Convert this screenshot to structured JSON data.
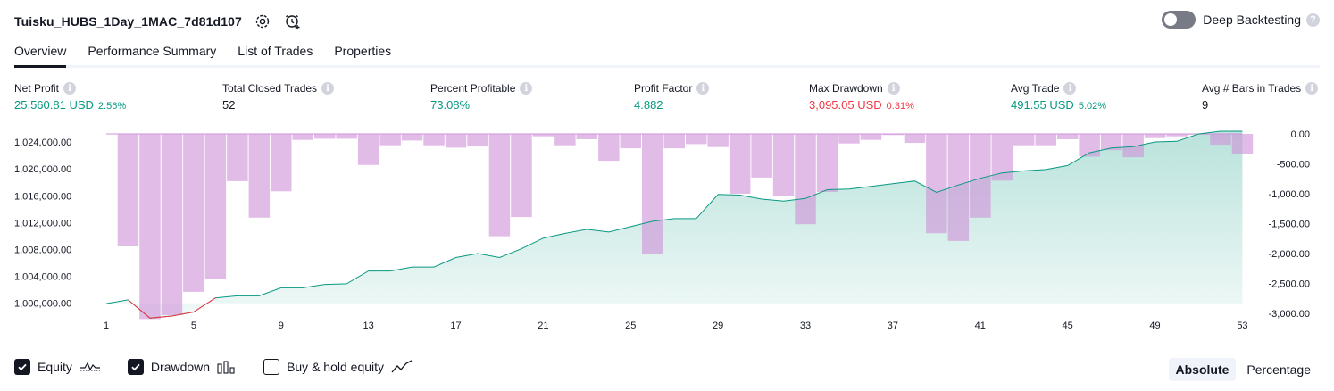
{
  "header": {
    "strategy_name": "Tuisku_HUBS_1Day_1MAC_7d81d107",
    "settings_icon": "gear-icon",
    "alert_icon": "add-alert-icon",
    "deep_backtesting_label": "Deep Backtesting",
    "deep_backtesting_on": false,
    "help_glyph": "?"
  },
  "tabs": [
    {
      "label": "Overview",
      "active": true
    },
    {
      "label": "Performance Summary",
      "active": false
    },
    {
      "label": "List of Trades",
      "active": false
    },
    {
      "label": "Properties",
      "active": false
    }
  ],
  "metrics": [
    {
      "label": "Net Profit",
      "value": "25,560.81 USD",
      "pct": "2.56%",
      "tone": "pos"
    },
    {
      "label": "Total Closed Trades",
      "value": "52",
      "pct": "",
      "tone": "neu"
    },
    {
      "label": "Percent Profitable",
      "value": "73.08%",
      "pct": "",
      "tone": "pos"
    },
    {
      "label": "Profit Factor",
      "value": "4.882",
      "pct": "",
      "tone": "pos"
    },
    {
      "label": "Max Drawdown",
      "value": "3,095.05 USD",
      "pct": "0.31%",
      "tone": "neg"
    },
    {
      "label": "Avg Trade",
      "value": "491.55 USD",
      "pct": "5.02%",
      "tone": "pos"
    },
    {
      "label": "Avg # Bars in Trades",
      "value": "9",
      "pct": "",
      "tone": "neu"
    }
  ],
  "chart_data": {
    "type": "area",
    "x": [
      1,
      2,
      3,
      4,
      5,
      6,
      7,
      8,
      9,
      10,
      11,
      12,
      13,
      14,
      15,
      16,
      17,
      18,
      19,
      20,
      21,
      22,
      23,
      24,
      25,
      26,
      27,
      28,
      29,
      30,
      31,
      32,
      33,
      34,
      35,
      36,
      37,
      38,
      39,
      40,
      41,
      42,
      43,
      44,
      45,
      46,
      47,
      48,
      49,
      50,
      51,
      52,
      53
    ],
    "xticks": [
      "1",
      "5",
      "9",
      "13",
      "17",
      "21",
      "25",
      "29",
      "33",
      "37",
      "41",
      "45",
      "49",
      "53"
    ],
    "equity": {
      "name": "Equity",
      "values": [
        999950,
        1000500,
        997800,
        998100,
        998700,
        1000800,
        1001100,
        1001100,
        1002300,
        1002300,
        1002800,
        1002900,
        1004800,
        1004800,
        1005400,
        1005400,
        1006800,
        1007400,
        1006800,
        1008100,
        1009700,
        1010400,
        1011000,
        1010600,
        1011400,
        1012200,
        1012600,
        1012600,
        1016200,
        1016100,
        1015500,
        1015200,
        1015600,
        1016900,
        1017000,
        1017400,
        1017800,
        1018200,
        1016500,
        1017600,
        1018600,
        1019400,
        1019700,
        1019900,
        1020500,
        1022400,
        1023100,
        1023300,
        1024000,
        1024100,
        1025200,
        1025600,
        1025600
      ],
      "color": "#089981",
      "drawdown_color": "#f23645"
    },
    "drawdown": {
      "name": "Drawdown",
      "values": [
        0,
        -1880,
        -3095,
        -3030,
        -2640,
        -2420,
        -790,
        -1400,
        -960,
        -100,
        -80,
        -80,
        -520,
        -190,
        -110,
        -190,
        -230,
        -210,
        -1710,
        -1390,
        -40,
        -190,
        -90,
        -450,
        -240,
        -2010,
        -240,
        -170,
        -220,
        -1000,
        -730,
        -1030,
        -1510,
        -970,
        -160,
        -100,
        -20,
        -150,
        -1660,
        -1790,
        -1400,
        -780,
        -190,
        -190,
        -90,
        -380,
        -270,
        -390,
        -70,
        -40,
        0,
        -180,
        -330
      ],
      "color": "#ce93d8"
    },
    "left_axis": {
      "min": 998500,
      "max": 1025200,
      "ticks": [
        "1,024,000.00",
        "1,020,000.00",
        "1,016,000.00",
        "1,012,000.00",
        "1,008,000.00",
        "1,004,000.00",
        "1,000,000.00"
      ],
      "tick_values": [
        1024000,
        1020000,
        1016000,
        1012000,
        1008000,
        1004000,
        1000000
      ]
    },
    "right_axis": {
      "min": -3000,
      "max": 0,
      "ticks": [
        "0.00",
        "-500.00",
        "-1,000.00",
        "-1,500.00",
        "-2,000.00",
        "-2,500.00",
        "-3,000.00"
      ],
      "tick_values": [
        0,
        -500,
        -1000,
        -1500,
        -2000,
        -2500,
        -3000
      ]
    }
  },
  "legend": {
    "equity_label": "Equity",
    "drawdown_label": "Drawdown",
    "buyhold_label": "Buy & hold equity",
    "equity_checked": true,
    "drawdown_checked": true,
    "buyhold_checked": false
  },
  "mode": {
    "absolute_label": "Absolute",
    "percentage_label": "Percentage",
    "active": "Absolute"
  }
}
